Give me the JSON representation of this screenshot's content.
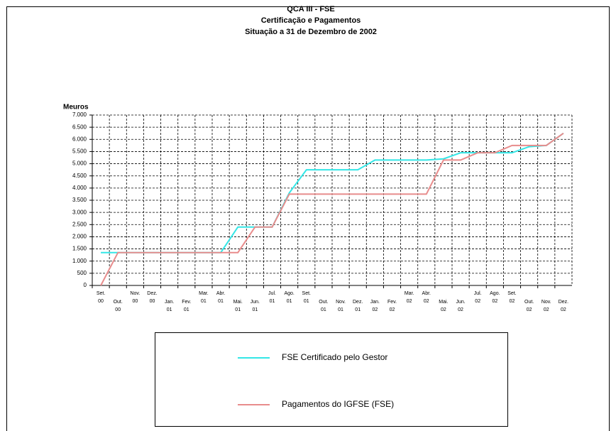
{
  "chart_data": {
    "type": "line",
    "title": "QCA III - FSE",
    "subtitle": "Certificação e Pagamentos",
    "subtitle2": "Situação a 31 de Dezembro de 2002",
    "ylabel": "Meuros",
    "categories": [
      "Set. 00",
      "Out. 00",
      "Nov. 00",
      "Dez. 00",
      "Jan. 01",
      "Fev. 01",
      "Mar. 01",
      "Abr. 01",
      "Mai. 01",
      "Jun. 01",
      "Jul. 01",
      "Ago. 01",
      "Set. 01",
      "Out. 01",
      "Nov. 01",
      "Dez. 01",
      "Jan. 02",
      "Fev. 02",
      "Mar. 02",
      "Abr. 02",
      "Mai. 02",
      "Jun. 02",
      "Jul. 02",
      "Ago. 02",
      "Set. 02",
      "Out. 02",
      "Nov. 02",
      "Dez. 02"
    ],
    "series": [
      {
        "name": "FSE Certificado pelo Gestor",
        "color": "#33e6e6",
        "values": [
          1350,
          1350,
          1350,
          1350,
          1350,
          1350,
          1350,
          1350,
          2400,
          2400,
          2400,
          3800,
          4750,
          4750,
          4750,
          4750,
          5150,
          5150,
          5150,
          5150,
          5200,
          5450,
          5450,
          5450,
          5450,
          5700,
          5750,
          6250
        ]
      },
      {
        "name": "Pagamentos do IGFSE (FSE)",
        "color": "#e88c8c",
        "values": [
          0,
          1350,
          1350,
          1350,
          1350,
          1350,
          1350,
          1350,
          1350,
          2400,
          2400,
          3750,
          3750,
          3750,
          3750,
          3750,
          3750,
          3750,
          3750,
          3750,
          5150,
          5150,
          5450,
          5450,
          5750,
          5750,
          5750,
          6250
        ]
      }
    ],
    "ylim": [
      0,
      7000
    ],
    "yticks": [
      0,
      {
        "value": 500,
        "label": "500"
      },
      {
        "value": 1000,
        "label": "1.000"
      },
      {
        "value": 1500,
        "label": "1.500"
      },
      {
        "value": 2000,
        "label": "2.000"
      },
      {
        "value": 2500,
        "label": "2.500"
      },
      {
        "value": 3000,
        "label": "3.000"
      },
      {
        "value": 3500,
        "label": "3.500"
      },
      {
        "value": 4000,
        "label": "4.000"
      },
      {
        "value": 4500,
        "label": "4.500"
      },
      {
        "value": 5000,
        "label": "5.000"
      },
      {
        "value": 5500,
        "label": "5.500"
      },
      {
        "value": 6000,
        "label": "6.000"
      },
      {
        "value": 6500,
        "label": "6.500"
      },
      {
        "value": 7000,
        "label": "7.000"
      }
    ],
    "grid": true
  }
}
